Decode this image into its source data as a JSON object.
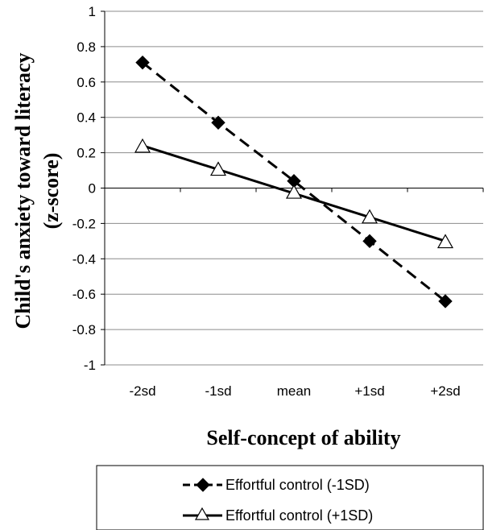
{
  "chart_data": {
    "type": "line",
    "categories": [
      "-2sd",
      "-1sd",
      "mean",
      "+1sd",
      "+2sd"
    ],
    "series": [
      {
        "name": "Effortful control (-1SD)",
        "values": [
          0.71,
          0.37,
          0.04,
          -0.3,
          -0.64
        ],
        "line_style": "dashed",
        "marker": "diamond",
        "marker_fill": "#000000"
      },
      {
        "name": "Effortful control (+1SD)",
        "values": [
          0.23,
          0.1,
          -0.03,
          -0.17,
          -0.31
        ],
        "line_style": "solid",
        "marker": "triangle",
        "marker_fill": "#ffffff",
        "line_points": [
          0.24,
          -0.3
        ]
      }
    ],
    "xlabel": "Self-concept of ability",
    "ylabel_lines": [
      "Child's anxiety toward literacy",
      "(z-score)"
    ],
    "ylim": [
      -1,
      1
    ],
    "yticks": [
      "1",
      "0.8",
      "0.6",
      "0.4",
      "0.2",
      "0",
      "-0.2",
      "-0.4",
      "-0.6",
      "-0.8",
      "-1"
    ],
    "grid": true,
    "legend_position": "bottom"
  }
}
